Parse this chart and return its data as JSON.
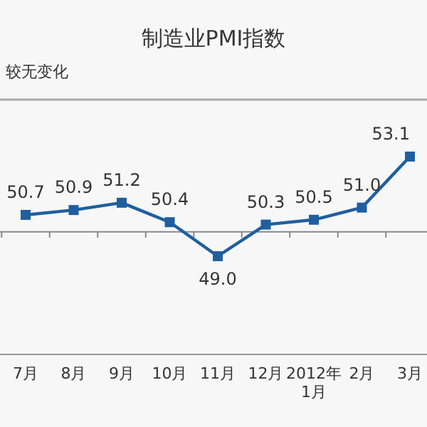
{
  "chart_data": {
    "type": "line",
    "title": "制造业PMI指数",
    "annotations": [
      "较无变化"
    ],
    "categories": [
      "7月",
      "8月",
      "9月",
      "10月",
      "11月",
      "12月",
      "2012年\n1月",
      "2月",
      "3月"
    ],
    "values": [
      50.7,
      50.9,
      51.2,
      50.4,
      49.0,
      50.3,
      50.5,
      51.0,
      53.1
    ],
    "color": "#1f5f9e",
    "marker": "square",
    "value_labels": [
      "50.7",
      "50.9",
      "51.2",
      "50.4",
      "49.0",
      "50.3",
      "50.5",
      "51.0",
      "53.1"
    ],
    "ref_lines": [
      {
        "axis": "y",
        "value": 50,
        "label": null,
        "color": "#888888"
      }
    ]
  }
}
